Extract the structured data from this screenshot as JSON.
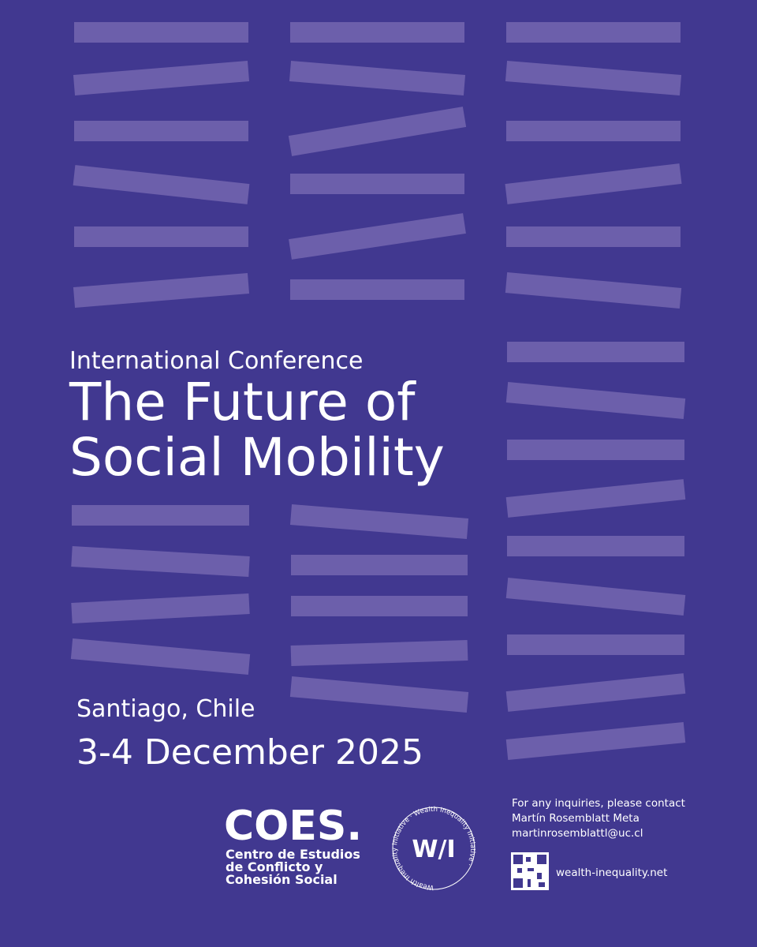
{
  "header": {
    "eyebrow": "International Conference",
    "title_lines": [
      "The Future of",
      "Social Mobility"
    ]
  },
  "event": {
    "location": "Santiago, Chile",
    "dates": "3-4 December 2025"
  },
  "coes": {
    "wordmark": "COES.",
    "name_lines": [
      "Centro de Estudios",
      "de Conflicto y",
      "Cohesión Social"
    ]
  },
  "wii": {
    "monogram": "W/I",
    "ring_text": "Wealth Inequality Initiative · Wealth Inequality Initiative ·"
  },
  "contact": {
    "lines": [
      "For any inquiries, please contact",
      "Martín  Rosemblatt Meta",
      "martinrosemblattl@uc.cl"
    ],
    "url": "wealth-inequality.net"
  }
}
